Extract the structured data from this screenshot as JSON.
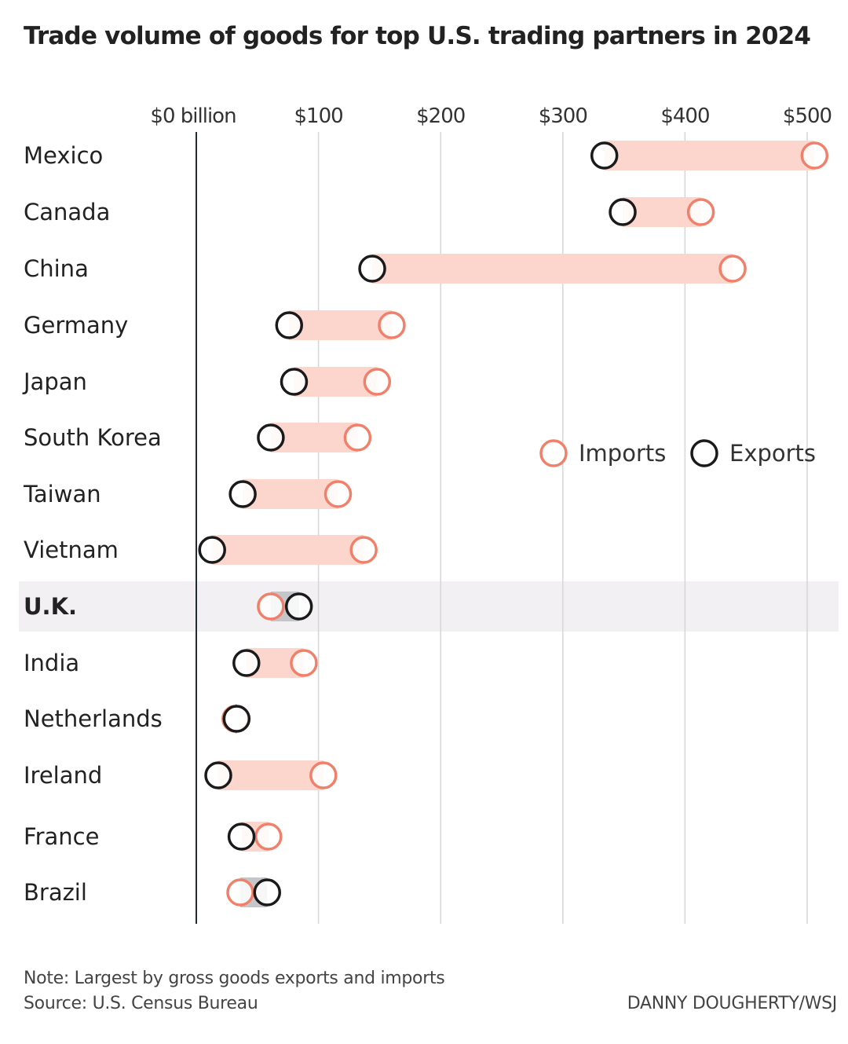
{
  "title": "Trade volume of goods for top U.S. trading partners in 2024",
  "colors": {
    "imports": "#f0806a",
    "exports": "#1a1a1a",
    "deficit_band": "#fcd5cc",
    "surplus_band": "#c4c6c9",
    "highlight_row": "#f3f0f3",
    "gridline": "#d6d6d6",
    "baseline": "#1f2d33"
  },
  "legend": {
    "imports_label": "Imports",
    "exports_label": "Exports"
  },
  "chart_data": {
    "type": "dot-range",
    "x_unit": "billion US dollars",
    "xlim": [
      0,
      525
    ],
    "x_ticks": [
      {
        "value": 0,
        "label": "$0 billion"
      },
      {
        "value": 100,
        "label": "$100"
      },
      {
        "value": 200,
        "label": "$200"
      },
      {
        "value": 300,
        "label": "$300"
      },
      {
        "value": 400,
        "label": "$400"
      },
      {
        "value": 500,
        "label": "$500"
      }
    ],
    "grid": true,
    "legend_position": "right-middle",
    "highlighted_category": "U.K.",
    "series": [
      {
        "name": "Imports",
        "values": [
          506,
          413,
          439,
          160,
          148,
          132,
          116,
          137,
          61,
          88,
          32,
          104,
          59,
          36
        ]
      },
      {
        "name": "Exports",
        "values": [
          334,
          349,
          144,
          76,
          80,
          61,
          38,
          13,
          84,
          41,
          33,
          18,
          37,
          58
        ]
      }
    ],
    "categories": [
      "Mexico",
      "Canada",
      "China",
      "Germany",
      "Japan",
      "South Korea",
      "Taiwan",
      "Vietnam",
      "U.K.",
      "India",
      "Netherlands",
      "Ireland",
      "France",
      "Brazil"
    ]
  },
  "footer": {
    "note": "Note: Largest by gross goods exports and imports",
    "source": "Source: U.S. Census Bureau",
    "credit": "DANNY DOUGHERTY/WSJ"
  }
}
